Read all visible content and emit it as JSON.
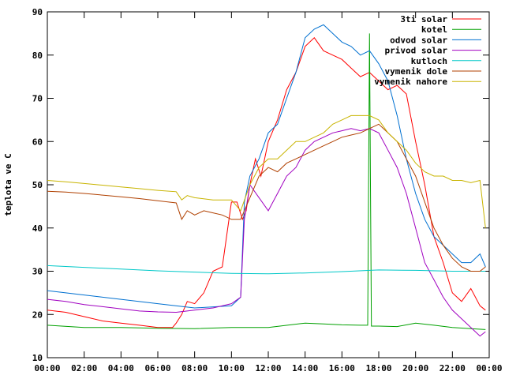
{
  "chart_data": {
    "type": "line",
    "title": "",
    "xlabel": "",
    "ylabel": "teplota ve C",
    "xlim": [
      0,
      24
    ],
    "ylim": [
      10,
      90
    ],
    "x_ticks": [
      "00:00",
      "02:00",
      "04:00",
      "06:00",
      "08:00",
      "10:00",
      "12:00",
      "14:00",
      "16:00",
      "18:00",
      "20:00",
      "22:00",
      "00:00"
    ],
    "y_ticks": [
      10,
      20,
      30,
      40,
      50,
      60,
      70,
      80,
      90
    ],
    "grid": false,
    "legend": "top-right",
    "series": [
      {
        "name": "3ti solar",
        "color": "#ff0000",
        "x": [
          0,
          1,
          2,
          3,
          4,
          5,
          6,
          6.8,
          7,
          7.3,
          7.6,
          8,
          8.5,
          9,
          9.5,
          10,
          10.3,
          10.6,
          10.8,
          11,
          11.3,
          11.6,
          12,
          12.5,
          13,
          13.5,
          14,
          14.5,
          15,
          15.5,
          16,
          16.5,
          17,
          17.5,
          18,
          18.5,
          19,
          19.5,
          20,
          20.5,
          21,
          21.5,
          22,
          22.5,
          23,
          23.5,
          23.8
        ],
        "y": [
          21,
          20.5,
          19.5,
          18.5,
          18,
          17.5,
          17,
          17,
          18,
          20,
          23,
          22.5,
          25,
          30,
          31,
          46,
          46,
          42,
          44,
          50,
          56,
          52,
          60,
          65,
          72,
          76,
          82,
          84,
          81,
          80,
          79,
          77,
          75,
          76,
          74,
          72,
          73,
          71,
          60,
          50,
          38,
          32,
          25,
          23,
          26,
          22,
          21
        ]
      },
      {
        "name": "kotel",
        "color": "#00a000",
        "x": [
          0,
          2,
          4,
          6,
          8,
          10,
          12,
          14,
          15,
          16,
          17,
          17.4,
          17.5,
          17.55,
          17.6,
          17.7,
          18,
          19,
          20,
          21,
          22,
          23,
          23.8
        ],
        "y": [
          17.5,
          17,
          17,
          16.8,
          16.7,
          17,
          17,
          18,
          17.8,
          17.6,
          17.5,
          17.5,
          85,
          50,
          17.3,
          17.3,
          17.3,
          17.2,
          18,
          17.5,
          17,
          16.7,
          16.5
        ]
      },
      {
        "name": "odvod solar",
        "color": "#0070d0",
        "x": [
          0,
          2,
          4,
          6,
          8,
          10,
          10.5,
          10.7,
          11,
          11.5,
          12,
          12.5,
          13,
          13.5,
          14,
          14.5,
          15,
          15.5,
          16,
          16.5,
          17,
          17.5,
          18,
          18.5,
          19,
          19.5,
          20,
          20.5,
          21,
          21.5,
          22,
          22.5,
          23,
          23.5,
          23.8
        ],
        "y": [
          25.5,
          24.5,
          23.5,
          22.5,
          21.5,
          22,
          24,
          46,
          52,
          56,
          62,
          64,
          70,
          76,
          84,
          86,
          87,
          85,
          83,
          82,
          80,
          81,
          78,
          74,
          66,
          56,
          48,
          42,
          38,
          36,
          34,
          32,
          32,
          34,
          31
        ]
      },
      {
        "name": "privod solar",
        "color": "#a000c0",
        "x": [
          0,
          1,
          2,
          3,
          4,
          5,
          6,
          7,
          8,
          9,
          10,
          10.5,
          10.7,
          11,
          11.5,
          12,
          12.5,
          13,
          13.5,
          14,
          14.5,
          15,
          15.5,
          16,
          16.5,
          17,
          17.5,
          18,
          18.5,
          19,
          19.5,
          20,
          20.5,
          21,
          21.5,
          22,
          22.5,
          23,
          23.5,
          23.8
        ],
        "y": [
          23.5,
          23,
          22.3,
          21.8,
          21.3,
          20.8,
          20.6,
          20.5,
          21,
          21.5,
          22.5,
          24,
          42,
          50,
          47,
          44,
          48,
          52,
          54,
          58,
          60,
          61,
          62,
          62.5,
          63,
          62.5,
          63,
          62,
          58,
          54,
          48,
          40,
          32,
          28,
          24,
          21,
          19,
          17,
          15,
          16
        ]
      },
      {
        "name": "kutloch",
        "color": "#00c8c8",
        "x": [
          0,
          2,
          4,
          6,
          8,
          10,
          12,
          14,
          16,
          18,
          20,
          22,
          23.8
        ],
        "y": [
          31.3,
          30.9,
          30.5,
          30.1,
          29.8,
          29.5,
          29.4,
          29.6,
          29.9,
          30.3,
          30.2,
          30,
          30
        ]
      },
      {
        "name": "vymenik dole",
        "color": "#b04000",
        "x": [
          0,
          1,
          2,
          3,
          4,
          5,
          6,
          7,
          7.3,
          7.6,
          8,
          8.5,
          9,
          9.5,
          10,
          10.5,
          11,
          11.5,
          12,
          12.5,
          13,
          13.5,
          14,
          14.5,
          15,
          15.5,
          16,
          16.5,
          17,
          17.5,
          18,
          18.5,
          19,
          19.5,
          20,
          20.5,
          21,
          21.5,
          22,
          22.5,
          23,
          23.5,
          23.8
        ],
        "y": [
          48.5,
          48.3,
          48,
          47.6,
          47.2,
          46.8,
          46.3,
          45.8,
          42,
          44,
          43,
          44,
          43.5,
          43,
          42,
          42,
          47,
          52,
          54,
          53,
          55,
          56,
          57,
          58,
          59,
          60,
          61,
          61.5,
          62,
          63,
          64,
          62,
          60,
          56,
          52,
          46,
          40,
          36,
          33,
          31,
          30,
          30,
          31
        ]
      },
      {
        "name": "vymenik nahore",
        "color": "#c8b400",
        "x": [
          0,
          1,
          2,
          3,
          4,
          5,
          6,
          7,
          7.3,
          7.6,
          8,
          9,
          10,
          10.5,
          11,
          11.5,
          12,
          12.5,
          13,
          13.5,
          14,
          14.5,
          15,
          15.5,
          16,
          16.5,
          17,
          17.5,
          18,
          18.5,
          19,
          19.5,
          20,
          20.5,
          21,
          21.5,
          22,
          22.5,
          23,
          23.5,
          23.8
        ],
        "y": [
          51,
          50.7,
          50.3,
          49.9,
          49.5,
          49.1,
          48.7,
          48.4,
          46.5,
          47.5,
          47,
          46.5,
          46.5,
          44,
          50,
          54,
          56,
          56,
          58,
          60,
          60,
          61,
          62,
          64,
          65,
          66,
          66,
          66,
          65,
          62,
          60,
          58,
          55,
          53,
          52,
          52,
          51,
          51,
          50.5,
          51,
          40
        ]
      }
    ]
  }
}
